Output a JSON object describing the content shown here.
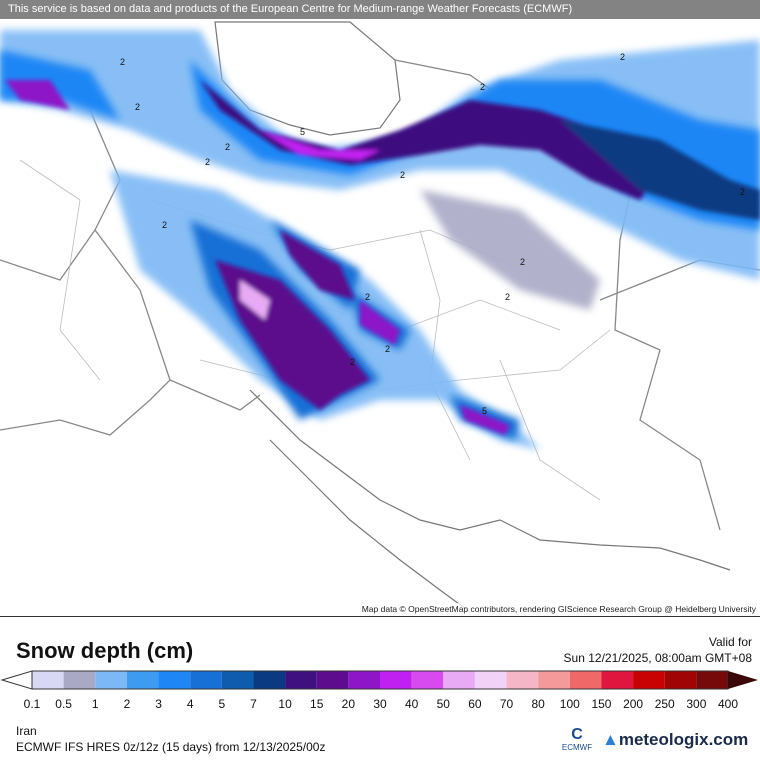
{
  "map": {
    "region": "Iran",
    "attribution_top": "This service is based on data and products of the European Centre for Medium-range Weather Forecasts (ECMWF)",
    "attribution_bottom": "Map data © OpenStreetMap contributors, rendering GIScience Research Group @ Heidelberg University",
    "contour_labels": [
      "2",
      "2",
      "2",
      "2",
      "2",
      "2",
      "2",
      "2",
      "2",
      "5",
      "2",
      "5",
      "2",
      "2",
      "2",
      "2"
    ]
  },
  "legend": {
    "title": "Snow depth (cm)",
    "valid_label": "Valid for",
    "valid_time": "Sun 12/21/2025, 08:00am GMT+08",
    "ticks": [
      "0.1",
      "0.5",
      "1",
      "2",
      "3",
      "4",
      "5",
      "7",
      "10",
      "15",
      "20",
      "30",
      "40",
      "50",
      "60",
      "70",
      "80",
      "100",
      "150",
      "200",
      "250",
      "300",
      "400"
    ],
    "colors": [
      "#d8d8f5",
      "#a9a9c6",
      "#7cb8f5",
      "#3d9cf2",
      "#1e86f5",
      "#1670d6",
      "#0f5cae",
      "#0a3a82",
      "#3e1080",
      "#5c0c8c",
      "#8c16c8",
      "#c020f0",
      "#d64af0",
      "#e8aaf5",
      "#f2d2f7",
      "#f5b6c8",
      "#f59a9a",
      "#f06868",
      "#e0163e",
      "#c80202",
      "#a00404",
      "#760a0a"
    ],
    "over_color": "#3a0808",
    "under_color": "#ffffff"
  },
  "footer": {
    "region": "Iran",
    "model": "ECMWF IFS HRES 0z/12z (15 days) from  12/13/2025/00z",
    "ecmwf_logo": "ECMWF",
    "brand": "meteologix.com"
  }
}
